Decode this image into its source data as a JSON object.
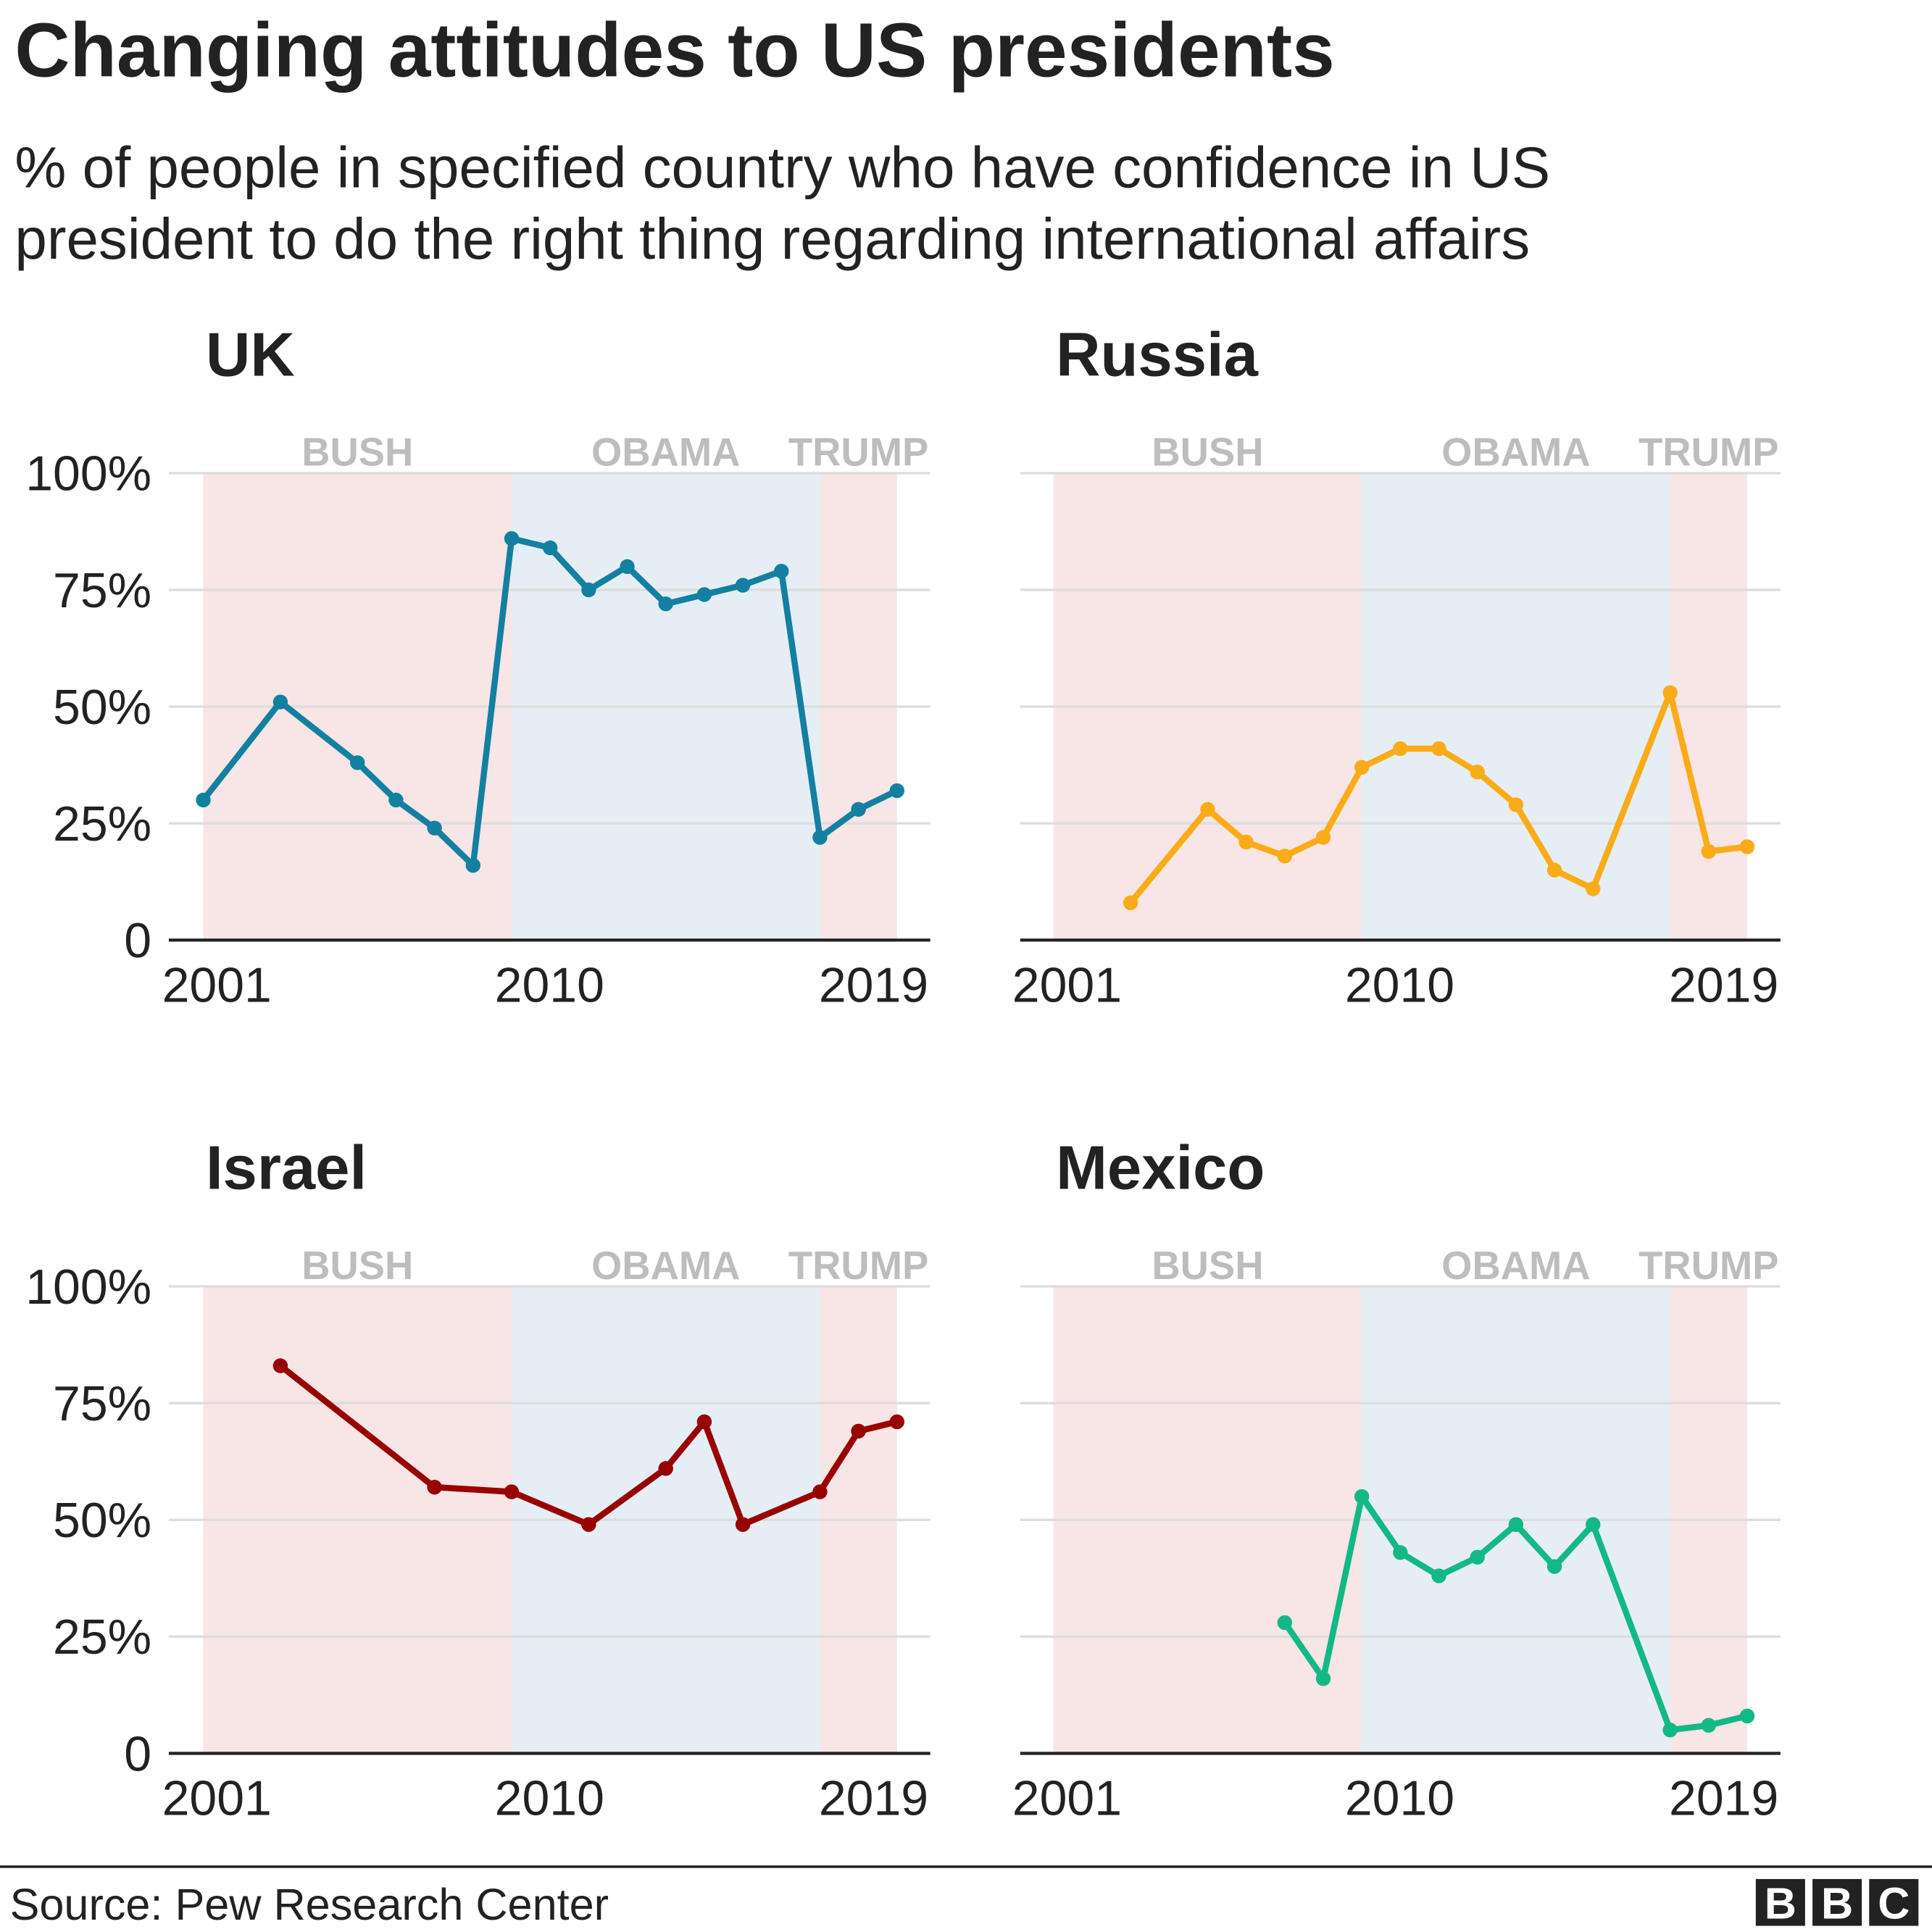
{
  "title": "Changing attitudes to US presidents",
  "subtitle_lines": [
    "% of people in specified country who have confidence in US",
    "president to do the right thing regarding international affairs"
  ],
  "source": "Source: Pew Research Center",
  "logo": "BBC",
  "colors": {
    "bush": "#f8e5e5",
    "obama": "#e6eef5",
    "grid": "#dddddd",
    "era_label": "#bdbdbd"
  },
  "eras": [
    {
      "label": "BUSH",
      "start": 2001,
      "end": 2009
    },
    {
      "label": "OBAMA",
      "start": 2009,
      "end": 2017
    },
    {
      "label": "TRUMP",
      "start": 2017,
      "end": 2019
    }
  ],
  "chart_data": [
    {
      "type": "line",
      "title": "UK",
      "color": "#1380A1",
      "xlim": [
        2001,
        2019
      ],
      "ylim": [
        0,
        100
      ],
      "x_ticks": [
        "2001",
        "2010",
        "2019"
      ],
      "y_ticks": [
        "0",
        "25%",
        "50%",
        "75%",
        "100%"
      ],
      "grid": true,
      "x": [
        2001,
        2003,
        2005,
        2006,
        2007,
        2008,
        2009,
        2010,
        2011,
        2012,
        2013,
        2014,
        2015,
        2016,
        2017,
        2018,
        2019
      ],
      "y": [
        30,
        51,
        38,
        30,
        24,
        16,
        86,
        84,
        75,
        80,
        72,
        74,
        76,
        79,
        22,
        28,
        32
      ]
    },
    {
      "type": "line",
      "title": "Russia",
      "color": "#FAAB18",
      "xlim": [
        2001,
        2019
      ],
      "ylim": [
        0,
        100
      ],
      "x_ticks": [
        "2001",
        "2010",
        "2019"
      ],
      "grid": true,
      "x": [
        2003,
        2005,
        2006,
        2007,
        2008,
        2009,
        2010,
        2011,
        2012,
        2013,
        2014,
        2015,
        2017,
        2018,
        2019
      ],
      "y": [
        8,
        28,
        21,
        18,
        22,
        37,
        41,
        41,
        36,
        29,
        15,
        11,
        53,
        19,
        20
      ]
    },
    {
      "type": "line",
      "title": "Israel",
      "color": "#990000",
      "xlim": [
        2001,
        2019
      ],
      "ylim": [
        0,
        100
      ],
      "x_ticks": [
        "2001",
        "2010",
        "2019"
      ],
      "y_ticks": [
        "0",
        "25%",
        "50%",
        "75%",
        "100%"
      ],
      "grid": true,
      "x": [
        2003,
        2007,
        2009,
        2011,
        2013,
        2014,
        2015,
        2017,
        2018,
        2019
      ],
      "y": [
        83,
        57,
        56,
        49,
        61,
        71,
        49,
        56,
        69,
        71
      ]
    },
    {
      "type": "line",
      "title": "Mexico",
      "color": "#12B886",
      "xlim": [
        2001,
        2019
      ],
      "ylim": [
        0,
        100
      ],
      "x_ticks": [
        "2001",
        "2010",
        "2019"
      ],
      "grid": true,
      "x": [
        2007,
        2008,
        2009,
        2010,
        2011,
        2012,
        2013,
        2014,
        2015,
        2017,
        2018,
        2019
      ],
      "y": [
        28,
        16,
        55,
        43,
        38,
        42,
        49,
        40,
        49,
        5,
        6,
        8
      ]
    }
  ]
}
